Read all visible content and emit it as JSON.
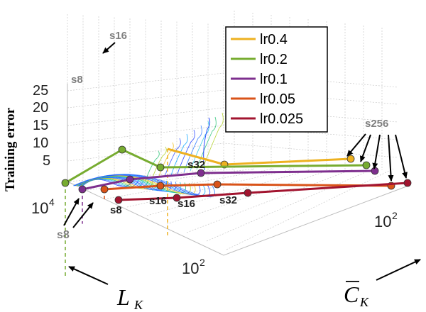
{
  "chart_data": {
    "type": "line",
    "projection": "3d",
    "zlabel": "Training error",
    "xlabel_symbol": "L",
    "xlabel_sub": "K",
    "ylabel_symbol": "C",
    "ylabel_sub": "K",
    "ticks": {
      "z": [
        "25",
        "20",
        "15",
        "10",
        "5"
      ],
      "lk": [
        {
          "base": "10",
          "exp": "4"
        },
        {
          "base": "10",
          "exp": "2"
        }
      ],
      "ck": [
        {
          "base": "10",
          "exp": "2"
        }
      ]
    },
    "annotations": {
      "s8_top": "s8",
      "s16_top": "s16",
      "s8_bottom_left": "s8",
      "s8_bottom": "s8",
      "s16_a": "s16",
      "s16_b": "s16",
      "s32_a": "s32",
      "s32_b": "s32",
      "s256": "s256"
    },
    "series": [
      {
        "name": "lr0.4",
        "color": "#EDB120",
        "stages": [
          "s16",
          "s32",
          "s256"
        ],
        "values": [
          23.8,
          8.5,
          4.6
        ]
      },
      {
        "name": "lr0.2",
        "color": "#77AC30",
        "stages": [
          "s8",
          "s16",
          "s32",
          "s256"
        ],
        "values": [
          26.0,
          9.0,
          3.5,
          3.4
        ]
      },
      {
        "name": "lr0.1",
        "color": "#7E2F8E",
        "stages": [
          "s8",
          "s16",
          "s32",
          "s256"
        ],
        "values": [
          9.5,
          3.9,
          3.3,
          3.2
        ]
      },
      {
        "name": "lr0.05",
        "color": "#D95319",
        "stages": [
          "s8",
          "s16",
          "s32",
          "s256"
        ],
        "values": [
          3.3,
          1.2,
          0.9,
          0.6
        ]
      },
      {
        "name": "lr0.025",
        "color": "#A2142F",
        "stages": [
          "s8",
          "s16",
          "s32",
          "s256"
        ],
        "values": [
          0.9,
          0.3,
          0.1,
          0.0
        ]
      }
    ]
  }
}
